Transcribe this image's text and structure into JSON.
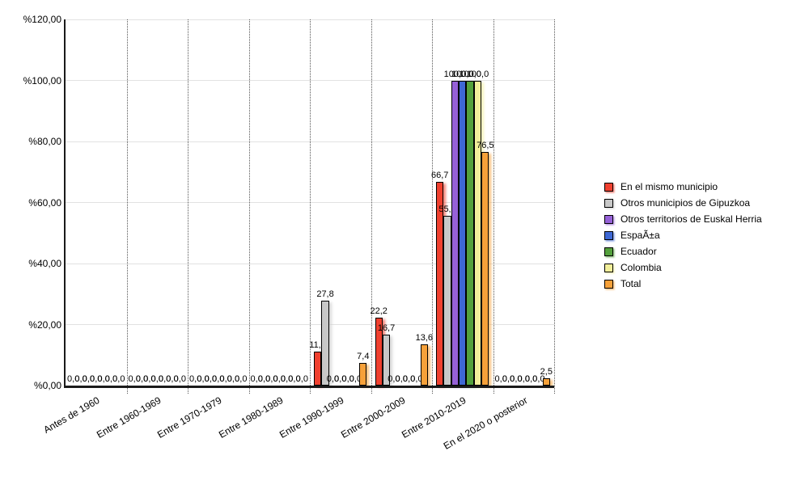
{
  "chart_data": {
    "type": "bar",
    "title": "",
    "categories": [
      "Antes de 1960",
      "Entre 1960-1969",
      "Entre 1970-1979",
      "Entre 1980-1989",
      "Entre 1990-1999",
      "Entre 2000-2009",
      "Entre 2010-2019",
      "En el 2020 o posterior"
    ],
    "series": [
      {
        "name": "En el mismo municipio",
        "color": "#f0402f",
        "values": [
          0.0,
          0.0,
          0.0,
          0.0,
          11.1,
          22.2,
          66.7,
          0.0
        ]
      },
      {
        "name": "Otros municipios de Gipuzkoa",
        "color": "#c8c8c8",
        "values": [
          0.0,
          0.0,
          0.0,
          0.0,
          27.8,
          16.7,
          55.6,
          0.0
        ]
      },
      {
        "name": "Otros territorios de Euskal Herria",
        "color": "#9661d8",
        "values": [
          0.0,
          0.0,
          0.0,
          0.0,
          0.0,
          0.0,
          100.0,
          0.0
        ]
      },
      {
        "name": "EspaÃ±a",
        "color": "#3e68d5",
        "values": [
          0.0,
          0.0,
          0.0,
          0.0,
          0.0,
          0.0,
          100.0,
          0.0
        ]
      },
      {
        "name": "Ecuador",
        "color": "#54a13c",
        "values": [
          0.0,
          0.0,
          0.0,
          0.0,
          0.0,
          0.0,
          100.0,
          0.0
        ]
      },
      {
        "name": "Colombia",
        "color": "#f2ef9a",
        "values": [
          0.0,
          0.0,
          0.0,
          0.0,
          0.0,
          0.0,
          100.0,
          0.0
        ]
      },
      {
        "name": "Total",
        "color": "#f7a139",
        "values": [
          0.0,
          0.0,
          0.0,
          0.0,
          7.4,
          13.6,
          76.5,
          2.5
        ]
      }
    ],
    "y_ticks": [
      "%120,00",
      "%100,00",
      "%80,00",
      "%60,00",
      "%40,00",
      "%20,00",
      "%0,00"
    ],
    "ylim": [
      0,
      120
    ],
    "value_label_format": "decimal comma, one digit (e.g. 66,7)",
    "legend_position": "right",
    "grid": {
      "horizontal": "solid light gray",
      "vertical": "dotted category separators"
    }
  }
}
